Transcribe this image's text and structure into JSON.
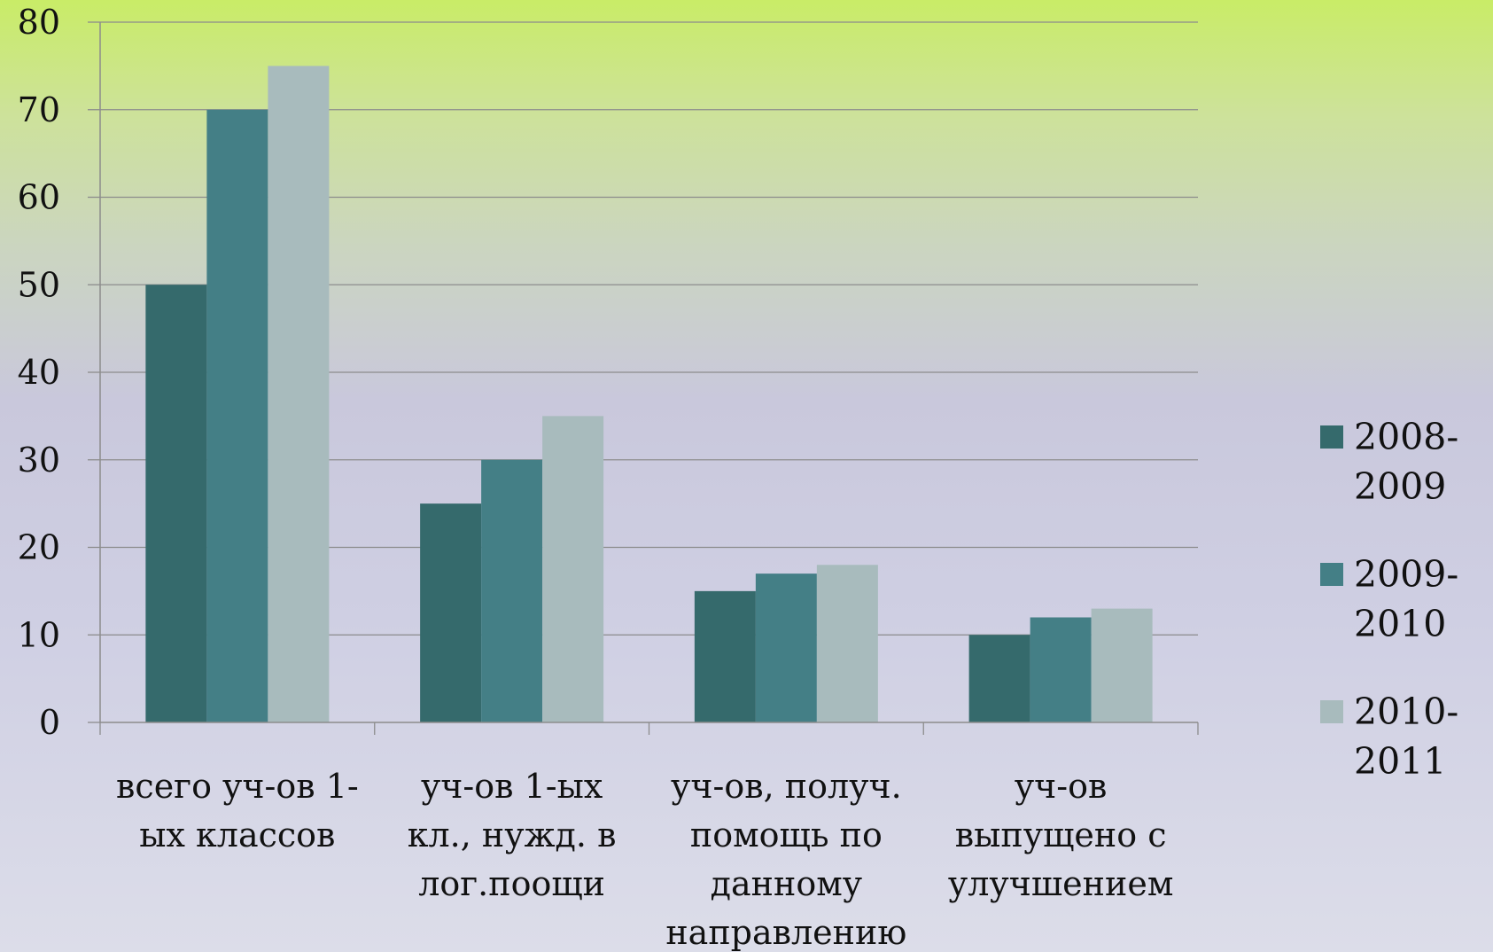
{
  "chart_data": {
    "type": "bar",
    "title": "",
    "xlabel": "",
    "ylabel": "",
    "ylim": [
      0,
      80
    ],
    "yticks": [
      0,
      10,
      20,
      30,
      40,
      50,
      60,
      70,
      80
    ],
    "grid": true,
    "legend_position": "right",
    "categories": [
      [
        "всего уч-ов 1-",
        "ых классов"
      ],
      [
        "уч-ов 1-ых",
        "кл., нужд. в",
        "лог.поощи"
      ],
      [
        "уч-ов, получ.",
        "помощь по",
        "данному",
        "направлению"
      ],
      [
        "уч-ов",
        "выпущено с",
        "улучшением"
      ]
    ],
    "series": [
      {
        "name": [
          "2008-",
          "2009"
        ],
        "values": [
          50,
          25,
          15,
          10
        ],
        "color": "#356a6c"
      },
      {
        "name": [
          " 2009-",
          "2010"
        ],
        "values": [
          70,
          30,
          17,
          12
        ],
        "color": "#447f86"
      },
      {
        "name": [
          "2010-",
          "2011"
        ],
        "values": [
          75,
          35,
          18,
          13
        ],
        "color": "#a8bbbd"
      }
    ]
  }
}
